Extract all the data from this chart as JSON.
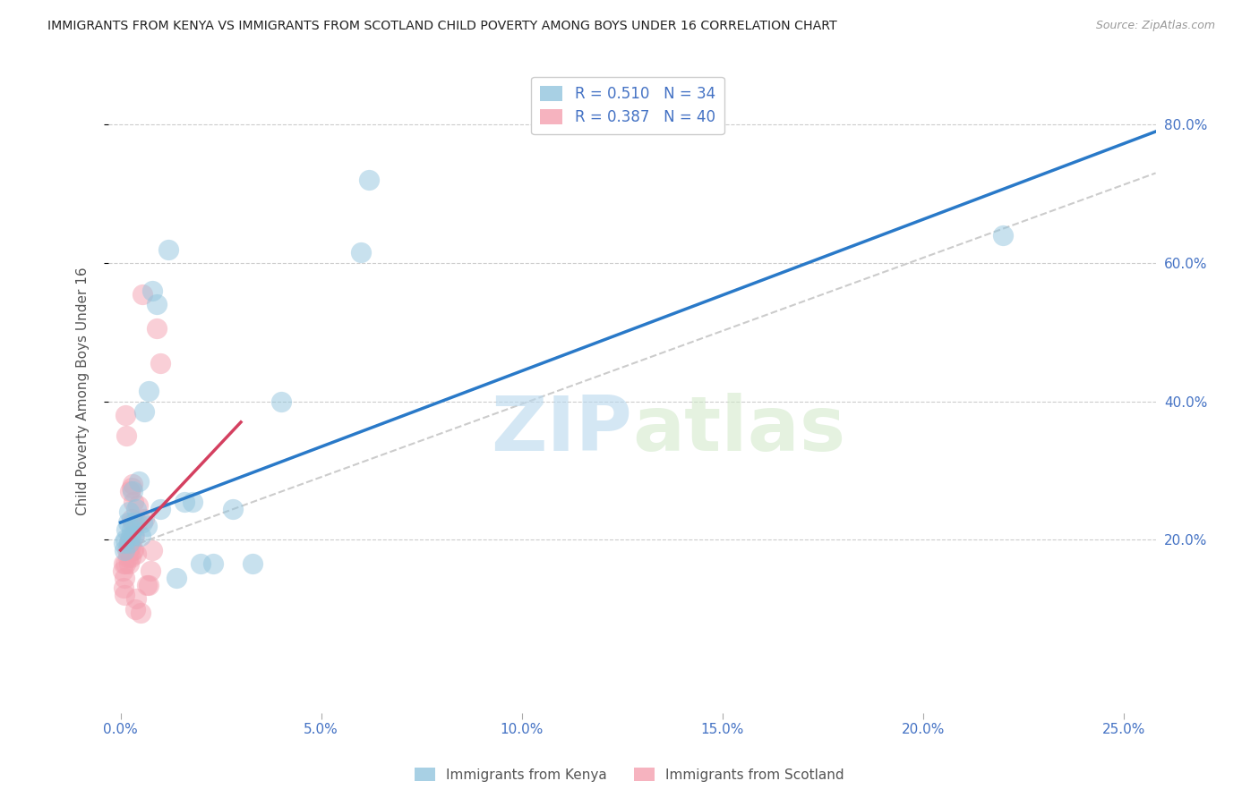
{
  "title": "IMMIGRANTS FROM KENYA VS IMMIGRANTS FROM SCOTLAND CHILD POVERTY AMONG BOYS UNDER 16 CORRELATION CHART",
  "source": "Source: ZipAtlas.com",
  "ylabel": "Child Poverty Among Boys Under 16",
  "xlabel_ticks": [
    "0.0%",
    "5.0%",
    "10.0%",
    "15.0%",
    "20.0%",
    "25.0%"
  ],
  "xlabel_vals": [
    0.0,
    0.05,
    0.1,
    0.15,
    0.2,
    0.25
  ],
  "ylabel_ticks": [
    "20.0%",
    "40.0%",
    "60.0%",
    "80.0%"
  ],
  "ylabel_vals": [
    0.2,
    0.4,
    0.6,
    0.8
  ],
  "xlim": [
    -0.003,
    0.258
  ],
  "ylim": [
    -0.05,
    0.88
  ],
  "kenya_color": "#92c5de",
  "scotland_color": "#f4a0b0",
  "kenya_R": 0.51,
  "kenya_N": 34,
  "scotland_R": 0.387,
  "scotland_N": 40,
  "legend_label_kenya": "Immigrants from Kenya",
  "legend_label_scotland": "Immigrants from Scotland",
  "watermark_zip": "ZIP",
  "watermark_atlas": "atlas",
  "kenya_x": [
    0.0008,
    0.001,
    0.0012,
    0.0015,
    0.0018,
    0.002,
    0.0022,
    0.0025,
    0.0028,
    0.003,
    0.0032,
    0.0035,
    0.004,
    0.0045,
    0.005,
    0.0055,
    0.006,
    0.0065,
    0.007,
    0.008,
    0.009,
    0.01,
    0.012,
    0.014,
    0.016,
    0.018,
    0.02,
    0.023,
    0.028,
    0.033,
    0.04,
    0.06,
    0.062,
    0.22
  ],
  "kenya_y": [
    0.195,
    0.185,
    0.2,
    0.215,
    0.225,
    0.24,
    0.195,
    0.205,
    0.215,
    0.27,
    0.205,
    0.225,
    0.245,
    0.285,
    0.205,
    0.225,
    0.385,
    0.22,
    0.415,
    0.56,
    0.54,
    0.245,
    0.62,
    0.145,
    0.255,
    0.255,
    0.165,
    0.165,
    0.245,
    0.165,
    0.4,
    0.615,
    0.72,
    0.64
  ],
  "scotland_x": [
    0.0005,
    0.0007,
    0.0008,
    0.0009,
    0.001,
    0.0012,
    0.0013,
    0.0015,
    0.0016,
    0.0018,
    0.0019,
    0.002,
    0.0021,
    0.0022,
    0.0023,
    0.0024,
    0.0025,
    0.0026,
    0.0027,
    0.0028,
    0.0029,
    0.003,
    0.0031,
    0.0032,
    0.0033,
    0.0035,
    0.0036,
    0.0038,
    0.004,
    0.0042,
    0.0044,
    0.005,
    0.0055,
    0.006,
    0.0065,
    0.007,
    0.0075,
    0.008,
    0.009,
    0.01
  ],
  "scotland_y": [
    0.155,
    0.13,
    0.165,
    0.12,
    0.145,
    0.165,
    0.38,
    0.35,
    0.185,
    0.175,
    0.185,
    0.165,
    0.195,
    0.19,
    0.27,
    0.2,
    0.175,
    0.19,
    0.23,
    0.275,
    0.28,
    0.185,
    0.225,
    0.255,
    0.185,
    0.205,
    0.1,
    0.115,
    0.18,
    0.225,
    0.25,
    0.095,
    0.555,
    0.23,
    0.135,
    0.135,
    0.155,
    0.185,
    0.505,
    0.455
  ],
  "kenya_line_x": [
    0.0,
    0.258
  ],
  "kenya_line_y": [
    0.225,
    0.79
  ],
  "scotland_line_x": [
    0.0,
    0.03
  ],
  "scotland_line_y": [
    0.185,
    0.37
  ],
  "diag_line_x": [
    0.0,
    0.258
  ],
  "diag_line_y": [
    0.185,
    0.73
  ]
}
